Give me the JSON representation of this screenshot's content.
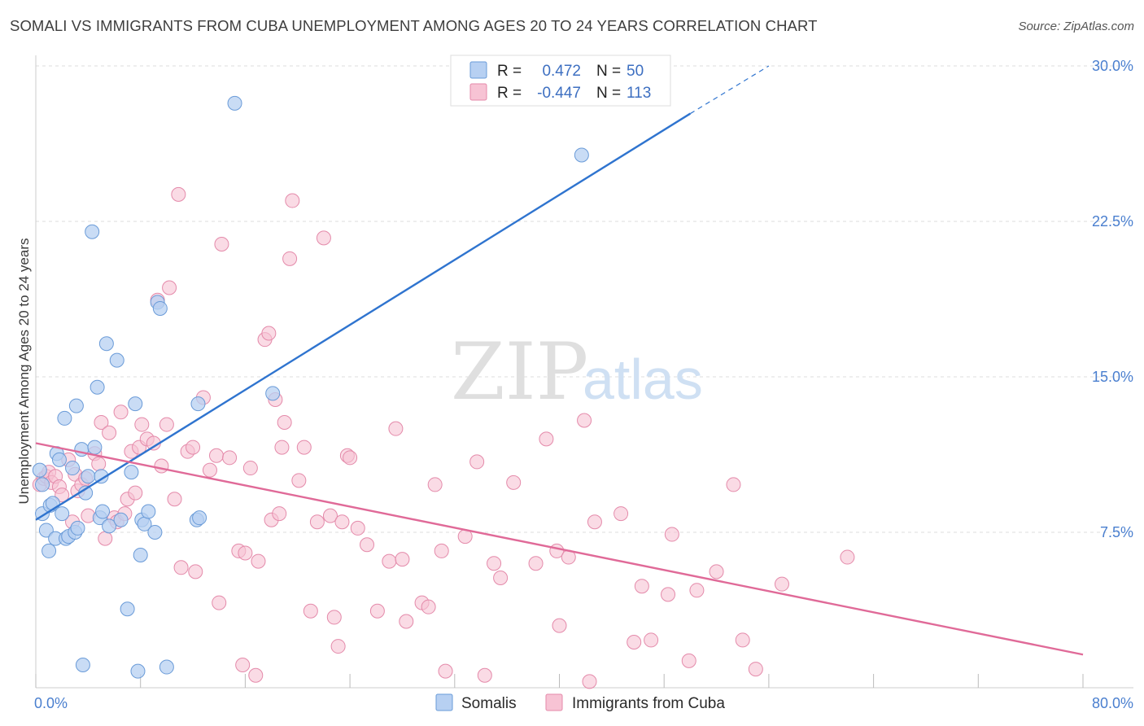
{
  "title": "SOMALI VS IMMIGRANTS FROM CUBA UNEMPLOYMENT AMONG AGES 20 TO 24 YEARS CORRELATION CHART",
  "source": "Source: ZipAtlas.com",
  "watermark": {
    "zip": "ZIP",
    "atlas": "atlas"
  },
  "colors": {
    "somali_fill": "#b7d0f2",
    "somali_stroke": "#6a9bd8",
    "somali_line": "#2f74cf",
    "cuba_fill": "#f7c3d4",
    "cuba_stroke": "#e48aaa",
    "cuba_line": "#e06a98",
    "grid": "#dddddd",
    "tick_text": "#4a7fcf"
  },
  "legend": {
    "rows": [
      {
        "r_label": "R =",
        "r_value": "0.472",
        "n_label": "N =",
        "n_value": "50"
      },
      {
        "r_label": "R =",
        "r_value": "-0.447",
        "n_label": "N =",
        "n_value": "113"
      }
    ]
  },
  "bottom_legend": {
    "somali": "Somalis",
    "cuba": "Immigrants from Cuba"
  },
  "chart_data": {
    "type": "scatter",
    "title": "SOMALI VS IMMIGRANTS FROM CUBA UNEMPLOYMENT AMONG AGES 20 TO 24 YEARS CORRELATION CHART",
    "xlabel": "",
    "ylabel": "Unemployment Among Ages 20 to 24 years",
    "xlim": [
      0,
      80
    ],
    "ylim": [
      0,
      30
    ],
    "x_tick_labels": [
      "0.0%",
      "80.0%"
    ],
    "y_ticks": [
      7.5,
      15.0,
      22.5,
      30.0
    ],
    "y_tick_labels": [
      "7.5%",
      "15.0%",
      "22.5%",
      "30.0%"
    ],
    "grid": true,
    "legend_position": "top-center",
    "series": [
      {
        "name": "Somalis",
        "R": 0.472,
        "N": 50,
        "trend": {
          "x_start": 0,
          "y_start": 8.1,
          "x_end": 50,
          "y_end": 27.7,
          "dashed_to_x": 56,
          "dashed_to_y": 30.0
        },
        "points": [
          [
            0.3,
            10.5
          ],
          [
            0.5,
            9.8
          ],
          [
            0.5,
            8.4
          ],
          [
            0.8,
            7.6
          ],
          [
            1.0,
            6.6
          ],
          [
            1.1,
            8.8
          ],
          [
            1.3,
            8.9
          ],
          [
            1.5,
            7.2
          ],
          [
            1.6,
            11.3
          ],
          [
            1.8,
            11.0
          ],
          [
            2.0,
            8.4
          ],
          [
            2.2,
            13.0
          ],
          [
            2.3,
            7.2
          ],
          [
            2.5,
            7.3
          ],
          [
            2.8,
            10.6
          ],
          [
            3.0,
            7.5
          ],
          [
            3.1,
            13.6
          ],
          [
            3.2,
            7.7
          ],
          [
            3.5,
            11.5
          ],
          [
            3.6,
            1.1
          ],
          [
            3.8,
            9.4
          ],
          [
            4.0,
            10.2
          ],
          [
            4.3,
            22.0
          ],
          [
            4.5,
            11.6
          ],
          [
            4.7,
            14.5
          ],
          [
            4.9,
            8.2
          ],
          [
            5.0,
            10.2
          ],
          [
            5.1,
            8.5
          ],
          [
            5.4,
            16.6
          ],
          [
            5.6,
            7.8
          ],
          [
            6.2,
            15.8
          ],
          [
            6.5,
            8.1
          ],
          [
            7.0,
            3.8
          ],
          [
            7.3,
            10.4
          ],
          [
            7.6,
            13.7
          ],
          [
            7.8,
            0.8
          ],
          [
            8.0,
            6.4
          ],
          [
            8.1,
            8.1
          ],
          [
            8.3,
            7.9
          ],
          [
            8.6,
            8.5
          ],
          [
            9.1,
            7.5
          ],
          [
            9.3,
            18.6
          ],
          [
            9.5,
            18.3
          ],
          [
            10.0,
            1.0
          ],
          [
            12.3,
            8.1
          ],
          [
            12.5,
            8.2
          ],
          [
            12.4,
            13.7
          ],
          [
            15.2,
            28.2
          ],
          [
            18.1,
            14.2
          ],
          [
            41.7,
            25.7
          ]
        ]
      },
      {
        "name": "Immigrants from Cuba",
        "R": -0.447,
        "N": 113,
        "trend": {
          "x_start": 0,
          "y_start": 11.8,
          "x_end": 80,
          "y_end": 1.6
        },
        "points": [
          [
            0.3,
            9.8
          ],
          [
            0.6,
            10.1
          ],
          [
            0.8,
            10.2
          ],
          [
            1.0,
            10.4
          ],
          [
            1.2,
            9.9
          ],
          [
            1.5,
            10.2
          ],
          [
            1.8,
            9.7
          ],
          [
            2.0,
            9.3
          ],
          [
            2.5,
            11.0
          ],
          [
            2.8,
            8.0
          ],
          [
            3.0,
            10.3
          ],
          [
            3.2,
            9.5
          ],
          [
            3.5,
            9.8
          ],
          [
            3.8,
            10.1
          ],
          [
            4.0,
            8.3
          ],
          [
            4.5,
            11.3
          ],
          [
            4.8,
            10.8
          ],
          [
            5.0,
            12.8
          ],
          [
            5.3,
            7.2
          ],
          [
            5.6,
            12.3
          ],
          [
            6.0,
            8.2
          ],
          [
            6.2,
            8.0
          ],
          [
            6.5,
            13.3
          ],
          [
            6.8,
            8.4
          ],
          [
            7.0,
            9.1
          ],
          [
            7.3,
            11.4
          ],
          [
            7.6,
            9.4
          ],
          [
            7.9,
            11.6
          ],
          [
            8.1,
            12.7
          ],
          [
            8.5,
            12.0
          ],
          [
            9.0,
            11.8
          ],
          [
            9.3,
            18.7
          ],
          [
            9.6,
            10.7
          ],
          [
            10.0,
            12.7
          ],
          [
            10.2,
            19.3
          ],
          [
            10.6,
            9.1
          ],
          [
            10.9,
            23.8
          ],
          [
            11.1,
            5.8
          ],
          [
            11.6,
            11.4
          ],
          [
            12.0,
            11.6
          ],
          [
            12.2,
            5.6
          ],
          [
            12.8,
            14.0
          ],
          [
            13.3,
            10.5
          ],
          [
            13.8,
            11.2
          ],
          [
            14.0,
            4.1
          ],
          [
            14.2,
            21.4
          ],
          [
            14.8,
            11.1
          ],
          [
            15.5,
            6.6
          ],
          [
            15.8,
            1.1
          ],
          [
            16.0,
            6.5
          ],
          [
            16.4,
            10.6
          ],
          [
            16.8,
            0.6
          ],
          [
            17.0,
            6.1
          ],
          [
            17.5,
            16.8
          ],
          [
            17.8,
            17.1
          ],
          [
            18.0,
            8.1
          ],
          [
            18.3,
            13.9
          ],
          [
            18.6,
            8.4
          ],
          [
            18.8,
            11.6
          ],
          [
            19.0,
            12.8
          ],
          [
            19.4,
            20.7
          ],
          [
            19.6,
            23.5
          ],
          [
            20.1,
            10.0
          ],
          [
            20.5,
            11.6
          ],
          [
            21.0,
            3.7
          ],
          [
            21.5,
            8.0
          ],
          [
            22.0,
            21.7
          ],
          [
            22.5,
            8.3
          ],
          [
            22.8,
            3.4
          ],
          [
            23.1,
            2.0
          ],
          [
            23.4,
            8.0
          ],
          [
            23.8,
            11.2
          ],
          [
            24.0,
            11.1
          ],
          [
            24.6,
            7.7
          ],
          [
            25.3,
            6.9
          ],
          [
            26.1,
            3.7
          ],
          [
            27.0,
            6.1
          ],
          [
            27.5,
            12.5
          ],
          [
            28.0,
            6.2
          ],
          [
            28.3,
            3.2
          ],
          [
            29.5,
            4.1
          ],
          [
            30.0,
            3.9
          ],
          [
            30.5,
            9.8
          ],
          [
            31.0,
            6.6
          ],
          [
            31.3,
            0.8
          ],
          [
            32.8,
            7.3
          ],
          [
            33.7,
            10.9
          ],
          [
            34.3,
            0.6
          ],
          [
            35.0,
            6.0
          ],
          [
            35.5,
            5.3
          ],
          [
            36.5,
            9.9
          ],
          [
            38.2,
            6.0
          ],
          [
            39.0,
            12.0
          ],
          [
            39.8,
            6.6
          ],
          [
            40.0,
            3.0
          ],
          [
            40.7,
            6.3
          ],
          [
            41.9,
            12.9
          ],
          [
            42.3,
            0.3
          ],
          [
            42.7,
            8.0
          ],
          [
            44.7,
            8.4
          ],
          [
            45.7,
            2.2
          ],
          [
            46.3,
            4.9
          ],
          [
            47.0,
            2.3
          ],
          [
            48.3,
            4.5
          ],
          [
            48.6,
            7.4
          ],
          [
            49.9,
            1.3
          ],
          [
            50.5,
            4.7
          ],
          [
            52.0,
            5.6
          ],
          [
            53.3,
            9.8
          ],
          [
            54.0,
            2.3
          ],
          [
            55.0,
            0.9
          ],
          [
            57.0,
            5.0
          ],
          [
            62.0,
            6.3
          ]
        ]
      }
    ]
  }
}
